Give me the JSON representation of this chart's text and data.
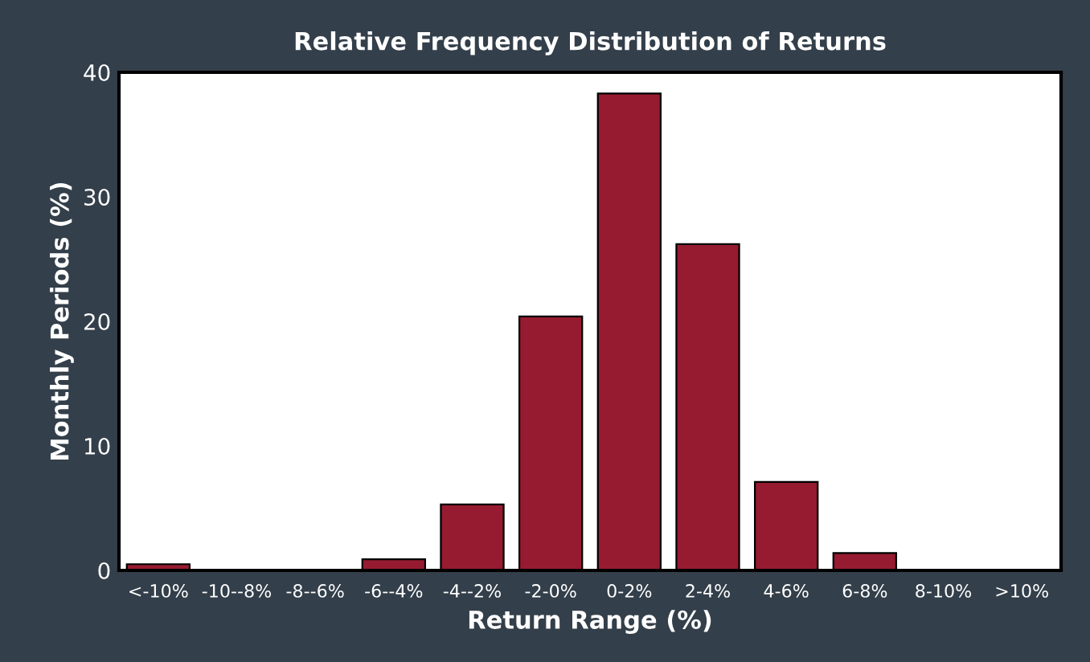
{
  "chart_data": {
    "type": "bar",
    "title": "Relative Frequency Distribution of Returns",
    "xlabel": "Return Range (%)",
    "ylabel": "Monthly Periods (%)",
    "categories": [
      "<-10%",
      "-10--8%",
      "-8--6%",
      "-6--4%",
      "-4--2%",
      "-2-0%",
      "0-2%",
      "2-4%",
      "4-6%",
      "6-8%",
      "8-10%",
      ">10%"
    ],
    "values": [
      0.5,
      0,
      0,
      0.9,
      5.3,
      20.4,
      38.3,
      26.2,
      7.1,
      1.4,
      0,
      0
    ],
    "color": "#961b30",
    "ylim": [
      0,
      40
    ],
    "yticks": [
      0,
      10,
      20,
      30,
      40
    ],
    "grid": false,
    "legend": false
  }
}
